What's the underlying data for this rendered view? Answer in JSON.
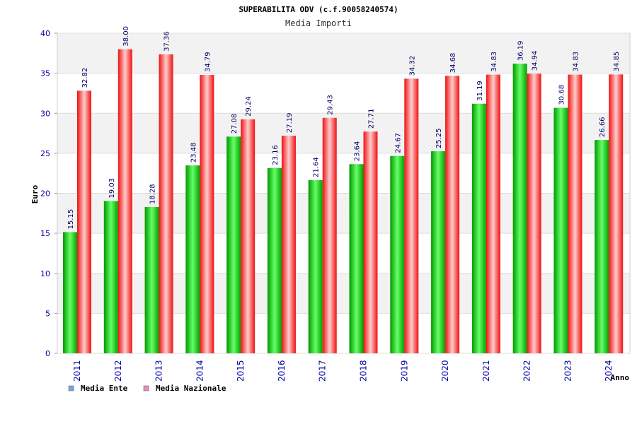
{
  "chart_data": {
    "type": "bar",
    "title": "SUPERABILITA ODV (c.f.90058240574)",
    "subtitle": "Media Importi",
    "xlabel": "Anno",
    "ylabel": "Euro",
    "ylim": [
      0,
      40
    ],
    "yticks": [
      "0",
      "5",
      "10",
      "15",
      "20",
      "25",
      "30",
      "35",
      "40"
    ],
    "categories": [
      "2011",
      "2012",
      "2013",
      "2014",
      "2015",
      "2016",
      "2017",
      "2018",
      "2019",
      "2020",
      "2021",
      "2022",
      "2023",
      "2024"
    ],
    "series": [
      {
        "name": "Media Ente",
        "values": [
          15.15,
          19.03,
          18.28,
          23.48,
          27.08,
          23.16,
          21.64,
          23.64,
          24.67,
          25.25,
          31.19,
          36.19,
          30.68,
          26.66
        ],
        "labels": [
          "15.15",
          "19.03",
          "18.28",
          "23.48",
          "27.08",
          "23.16",
          "21.64",
          "23.64",
          "24.67",
          "25.25",
          "31.19",
          "36.19",
          "30.68",
          "26.66"
        ]
      },
      {
        "name": "Media Nazionale",
        "values": [
          32.82,
          38.0,
          37.36,
          34.79,
          29.24,
          27.19,
          29.43,
          27.71,
          34.32,
          34.68,
          34.83,
          34.94,
          34.83,
          34.85
        ],
        "labels": [
          "32.82",
          "38.00",
          "37.36",
          "34.79",
          "29.24",
          "27.19",
          "29.43",
          "27.71",
          "34.32",
          "34.68",
          "34.83",
          "34.94",
          "34.83",
          "34.85"
        ]
      }
    ],
    "legend": [
      {
        "label": "Media Ente",
        "color": "#6fa8e8"
      },
      {
        "label": "Media Nazionale",
        "color": "#e58fc0"
      }
    ],
    "colors": {
      "ente_light": "#66ff66",
      "ente_dark": "#009900",
      "naz_light": "#ffcccc",
      "naz_dark": "#ee1111",
      "axis_text": "#0000aa",
      "label_text": "#000066"
    }
  }
}
